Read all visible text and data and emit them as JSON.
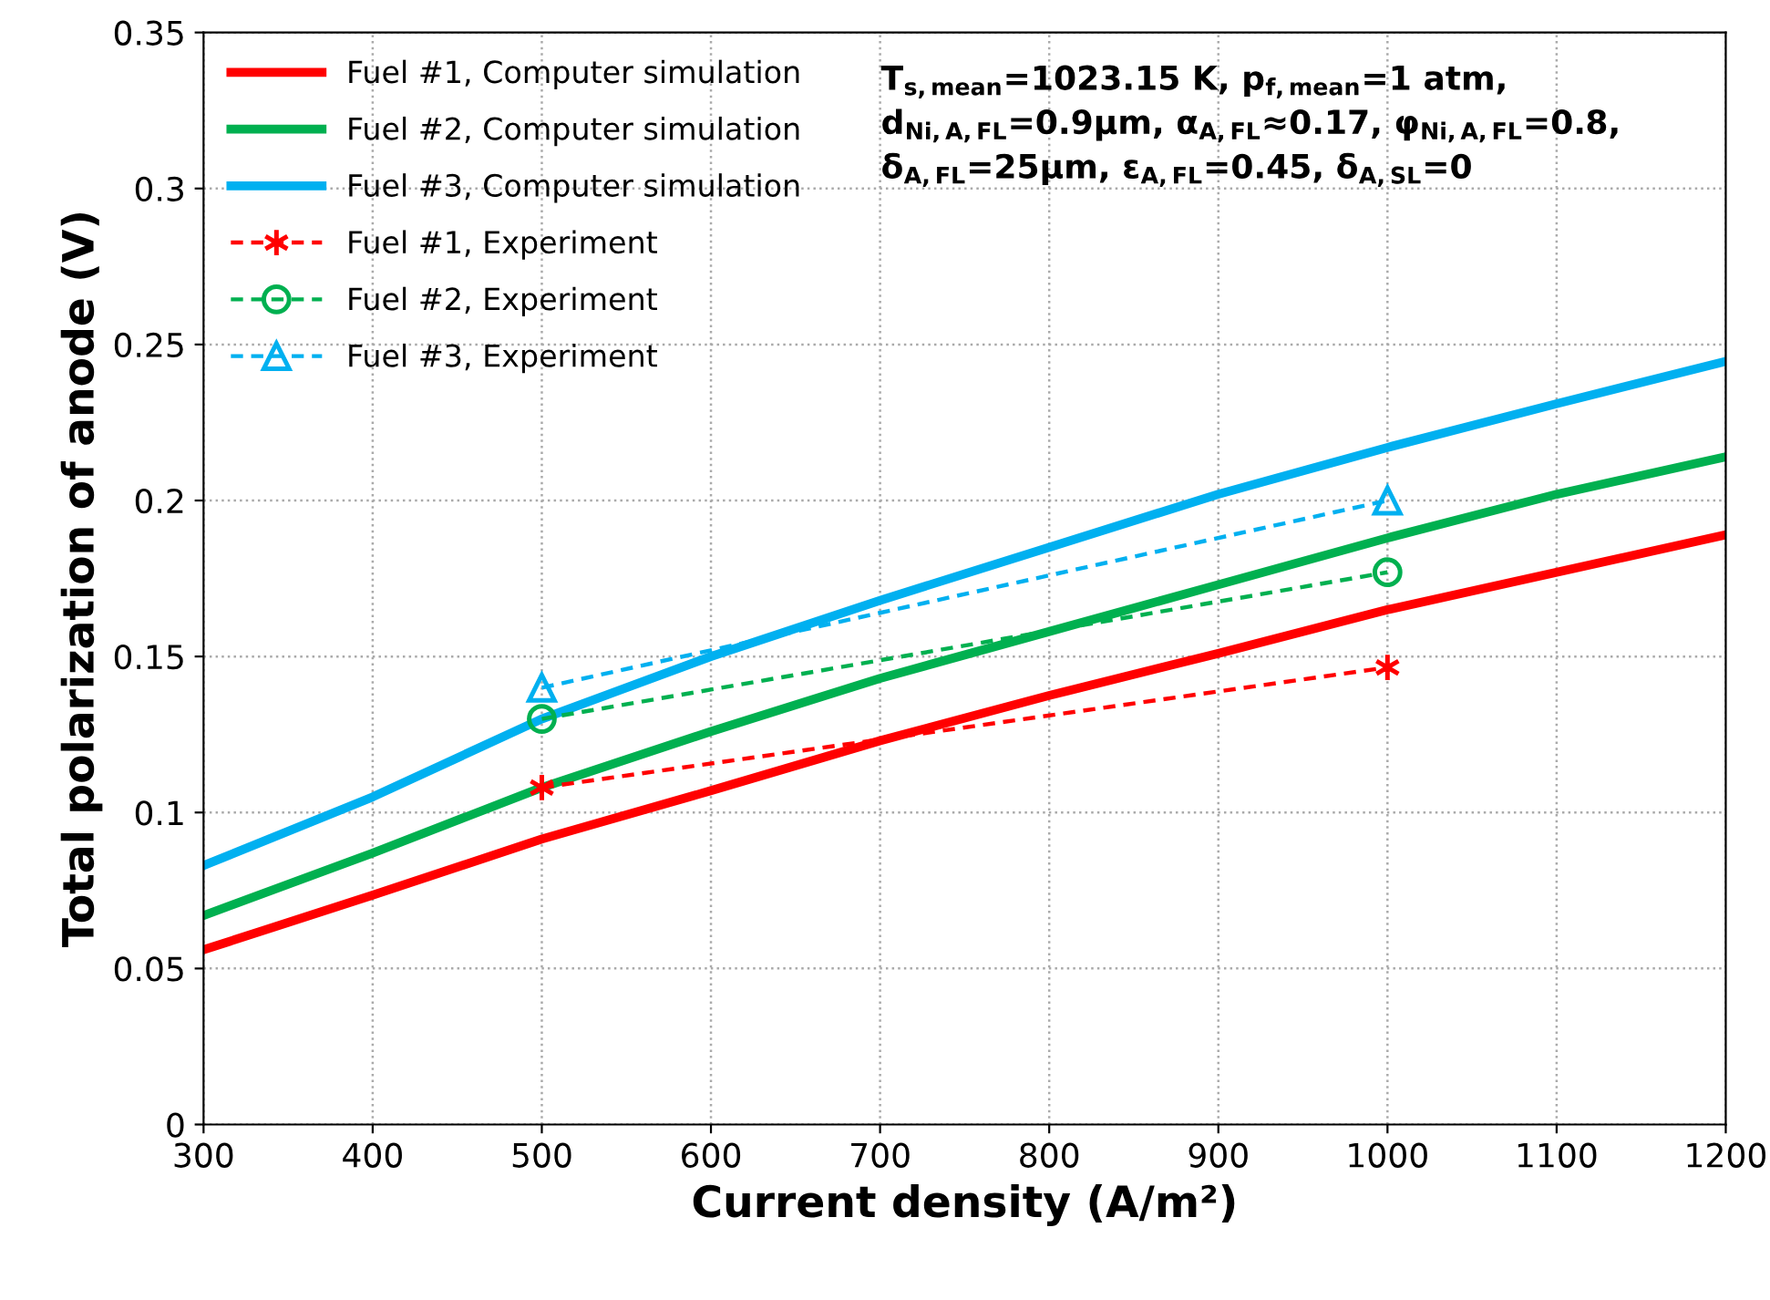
{
  "chart_data": {
    "type": "line",
    "xlabel": "Current density (A/m²)",
    "ylabel": "Total polarization of anode (V)",
    "xlim": [
      300,
      1200
    ],
    "xticks": [
      300,
      400,
      500,
      600,
      700,
      800,
      900,
      1000,
      1100,
      1200
    ],
    "ylim": [
      0,
      0.35
    ],
    "yticks": [
      0,
      0.05,
      0.1,
      0.15,
      0.2,
      0.25,
      0.3,
      0.35
    ],
    "grid": true,
    "legend": "top left",
    "annotations": [
      "T$_{s,mean}$=1023.15 K, p$_{f,mean}$=1 atm,\nd$_{Ni,A,FL}$=0.9μm, α$_{A,FL}$≈0.17, φ$_{Ni,A,FL}$=0.8,\nδ$_{A,FL}$=25μm, ε$_{A,FL}$=0.45, δ$_{A,SL}$=0"
    ],
    "series": [
      {
        "name": "Fuel #1, Computer simulation",
        "color": "#ff0000",
        "x": [
          300,
          400,
          500,
          600,
          700,
          800,
          900,
          1000,
          1100,
          1200
        ],
        "values": [
          0.056,
          0.0735,
          0.0915,
          0.107,
          0.123,
          0.1375,
          0.151,
          0.165,
          0.177,
          0.189
        ],
        "marker": "none",
        "line_style": "solid"
      },
      {
        "name": "Fuel #2, Computer simulation",
        "color": "#00b050",
        "x": [
          300,
          400,
          500,
          600,
          700,
          800,
          900,
          1000,
          1100,
          1200
        ],
        "values": [
          0.067,
          0.087,
          0.108,
          0.126,
          0.143,
          0.158,
          0.173,
          0.188,
          0.202,
          0.214
        ],
        "marker": "none",
        "line_style": "solid"
      },
      {
        "name": "Fuel #3, Computer simulation",
        "color": "#00b0f0",
        "x": [
          300,
          400,
          500,
          600,
          700,
          800,
          900,
          1000,
          1100,
          1200
        ],
        "values": [
          0.083,
          0.105,
          0.13,
          0.15,
          0.168,
          0.185,
          0.202,
          0.217,
          0.231,
          0.2446
        ],
        "marker": "none",
        "line_style": "solid"
      },
      {
        "name": "Fuel #1, Experiment",
        "color": "#ff0000",
        "x": [
          500,
          1000
        ],
        "values": [
          0.108,
          0.1465
        ],
        "marker": "cross",
        "line_style": "dashed"
      },
      {
        "name": "Fuel #2, Experiment",
        "color": "#00b050",
        "x": [
          500,
          1000
        ],
        "values": [
          0.13,
          0.177
        ],
        "marker": "circle",
        "line_style": "dashed"
      },
      {
        "name": "Fuel #3, Experiment",
        "color": "#00b0f0",
        "x": [
          500,
          1000
        ],
        "values": [
          0.14,
          0.2
        ],
        "marker": "triangle",
        "line_style": "dashed"
      }
    ]
  }
}
